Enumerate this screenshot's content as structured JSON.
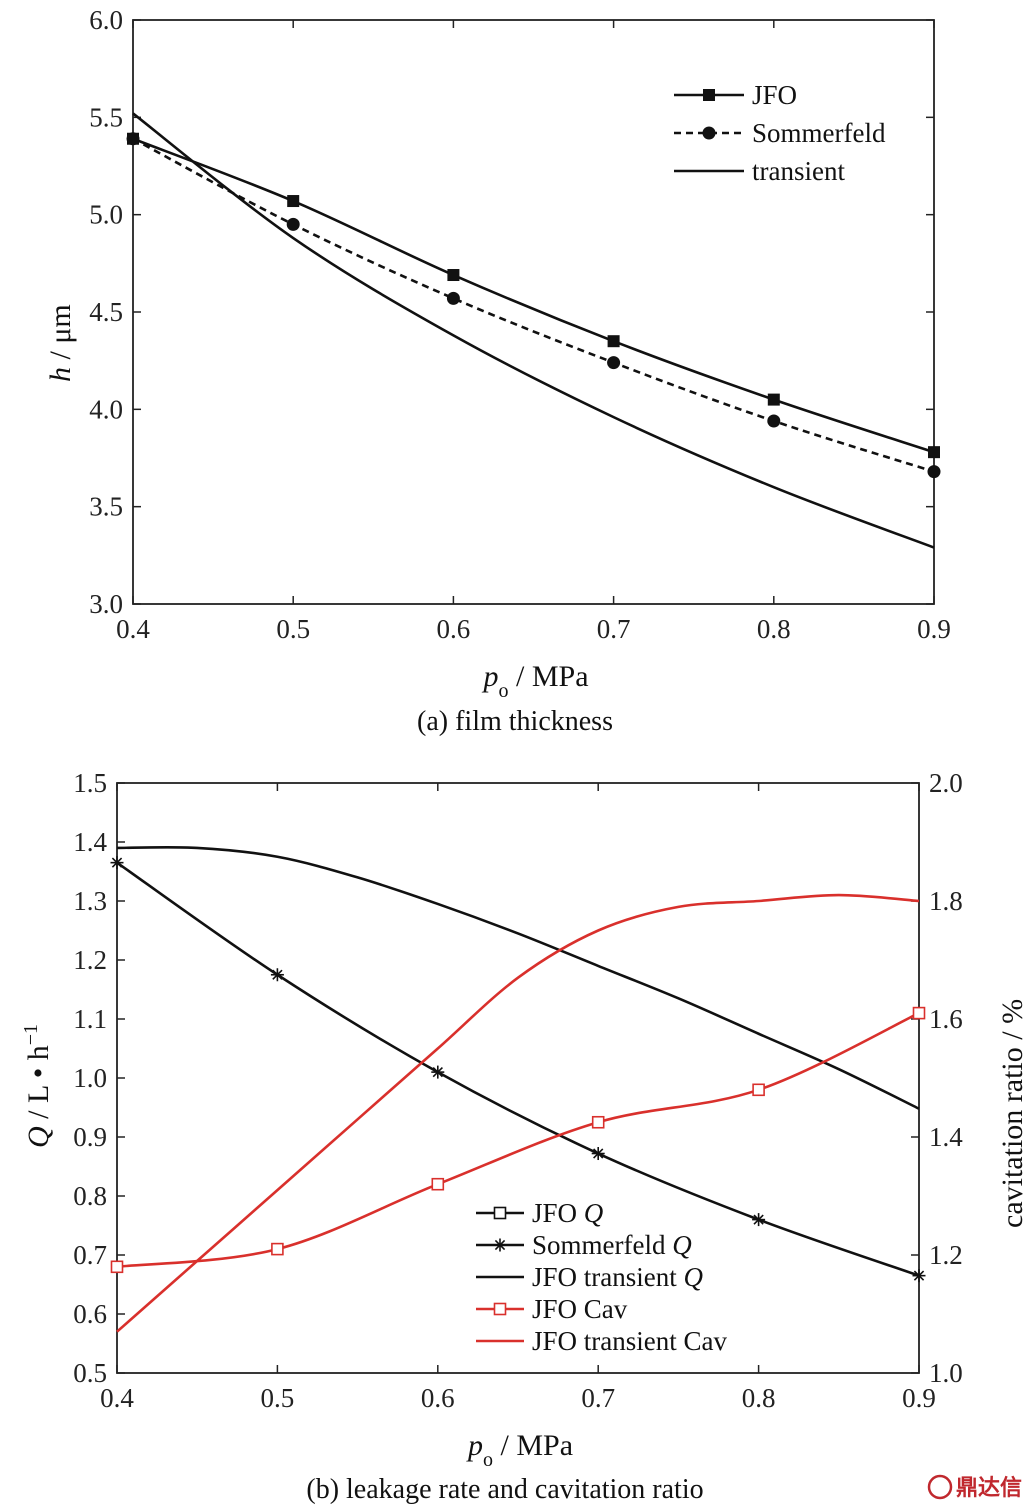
{
  "chart_data": [
    {
      "type": "line",
      "caption": "(a) film thickness",
      "xlabel": "p",
      "xlabel_sub": "o",
      "xlabel_unit": " / MPa",
      "ylabel_italic": "h",
      "ylabel_unit": " / μm",
      "xlim": [
        0.4,
        0.9
      ],
      "ylim": [
        3.0,
        6.0
      ],
      "xticks": [
        "0.4",
        "0.5",
        "0.6",
        "0.7",
        "0.8",
        "0.9"
      ],
      "yticks": [
        "3.0",
        "3.5",
        "4.0",
        "4.5",
        "5.0",
        "5.5",
        "6.0"
      ],
      "grid": false,
      "legend_position": "top-right",
      "series": [
        {
          "name": "JFO",
          "marker": "square",
          "dash": "solid",
          "x": [
            0.4,
            0.5,
            0.6,
            0.7,
            0.8,
            0.9
          ],
          "y": [
            5.39,
            5.07,
            4.69,
            4.35,
            4.05,
            3.78
          ]
        },
        {
          "name": "Sommerfeld",
          "marker": "circle",
          "dash": "dashed",
          "x": [
            0.4,
            0.5,
            0.6,
            0.7,
            0.8,
            0.9
          ],
          "y": [
            5.39,
            4.95,
            4.57,
            4.24,
            3.94,
            3.68
          ]
        },
        {
          "name": "transient",
          "marker": "none",
          "dash": "solid",
          "x": [
            0.4,
            0.5,
            0.6,
            0.7,
            0.8,
            0.9
          ],
          "y": [
            5.52,
            4.88,
            4.38,
            3.96,
            3.6,
            3.29
          ]
        }
      ]
    },
    {
      "type": "line",
      "caption": "(b) leakage rate and cavitation ratio",
      "xlabel": "p",
      "xlabel_sub": "o",
      "xlabel_unit": " / MPa",
      "ylabel_italic": "Q",
      "ylabel_unit": " / L • h",
      "ylabel_sup": "−1",
      "y2label": "cavitation ratio / %",
      "xlim": [
        0.4,
        0.9
      ],
      "ylim": [
        0.5,
        1.5
      ],
      "y2lim": [
        1.0,
        2.0
      ],
      "xticks": [
        "0.4",
        "0.5",
        "0.6",
        "0.7",
        "0.8",
        "0.9"
      ],
      "yticks": [
        "0.5",
        "0.6",
        "0.7",
        "0.8",
        "0.9",
        "1.0",
        "1.1",
        "1.2",
        "1.3",
        "1.4",
        "1.5"
      ],
      "y2ticks": [
        "1.0",
        "1.2",
        "1.4",
        "1.6",
        "1.8",
        "2.0"
      ],
      "grid": false,
      "legend_position": "bottom-right",
      "series": [
        {
          "name": "JFO",
          "name_italic": "Q",
          "axis": "left",
          "marker": "square-open",
          "color": "#111111",
          "x": [],
          "y": []
        },
        {
          "name": "Sommerfeld",
          "name_italic": "Q",
          "axis": "left",
          "marker": "star",
          "color": "#111111",
          "x": [
            0.4,
            0.5,
            0.6,
            0.7,
            0.8,
            0.9
          ],
          "y": [
            1.365,
            1.175,
            1.01,
            0.872,
            0.76,
            0.665
          ]
        },
        {
          "name": "JFO transient",
          "name_italic": "Q",
          "axis": "left",
          "marker": "none",
          "color": "#111111",
          "x": [
            0.4,
            0.45,
            0.5,
            0.55,
            0.6,
            0.65,
            0.7,
            0.75,
            0.8,
            0.85,
            0.9
          ],
          "y": [
            1.39,
            1.39,
            1.375,
            1.34,
            1.295,
            1.245,
            1.19,
            1.135,
            1.075,
            1.015,
            0.948
          ]
        },
        {
          "name": "JFO Cav",
          "name_italic": "",
          "axis": "right",
          "marker": "square-open",
          "color": "#d9302c",
          "x": [
            0.4,
            0.5,
            0.6,
            0.7,
            0.8,
            0.9
          ],
          "y": [
            1.18,
            1.21,
            1.32,
            1.425,
            1.48,
            1.61
          ]
        },
        {
          "name": "JFO transient Cav",
          "name_italic": "",
          "axis": "right",
          "marker": "none",
          "color": "#d9302c",
          "x": [
            0.4,
            0.45,
            0.5,
            0.55,
            0.6,
            0.65,
            0.7,
            0.75,
            0.8,
            0.85,
            0.9
          ],
          "y": [
            1.07,
            1.19,
            1.31,
            1.43,
            1.55,
            1.67,
            1.75,
            1.79,
            1.8,
            1.81,
            1.8
          ]
        }
      ]
    }
  ],
  "watermark": {
    "text": "鼎达信",
    "color": "#c0282e"
  }
}
